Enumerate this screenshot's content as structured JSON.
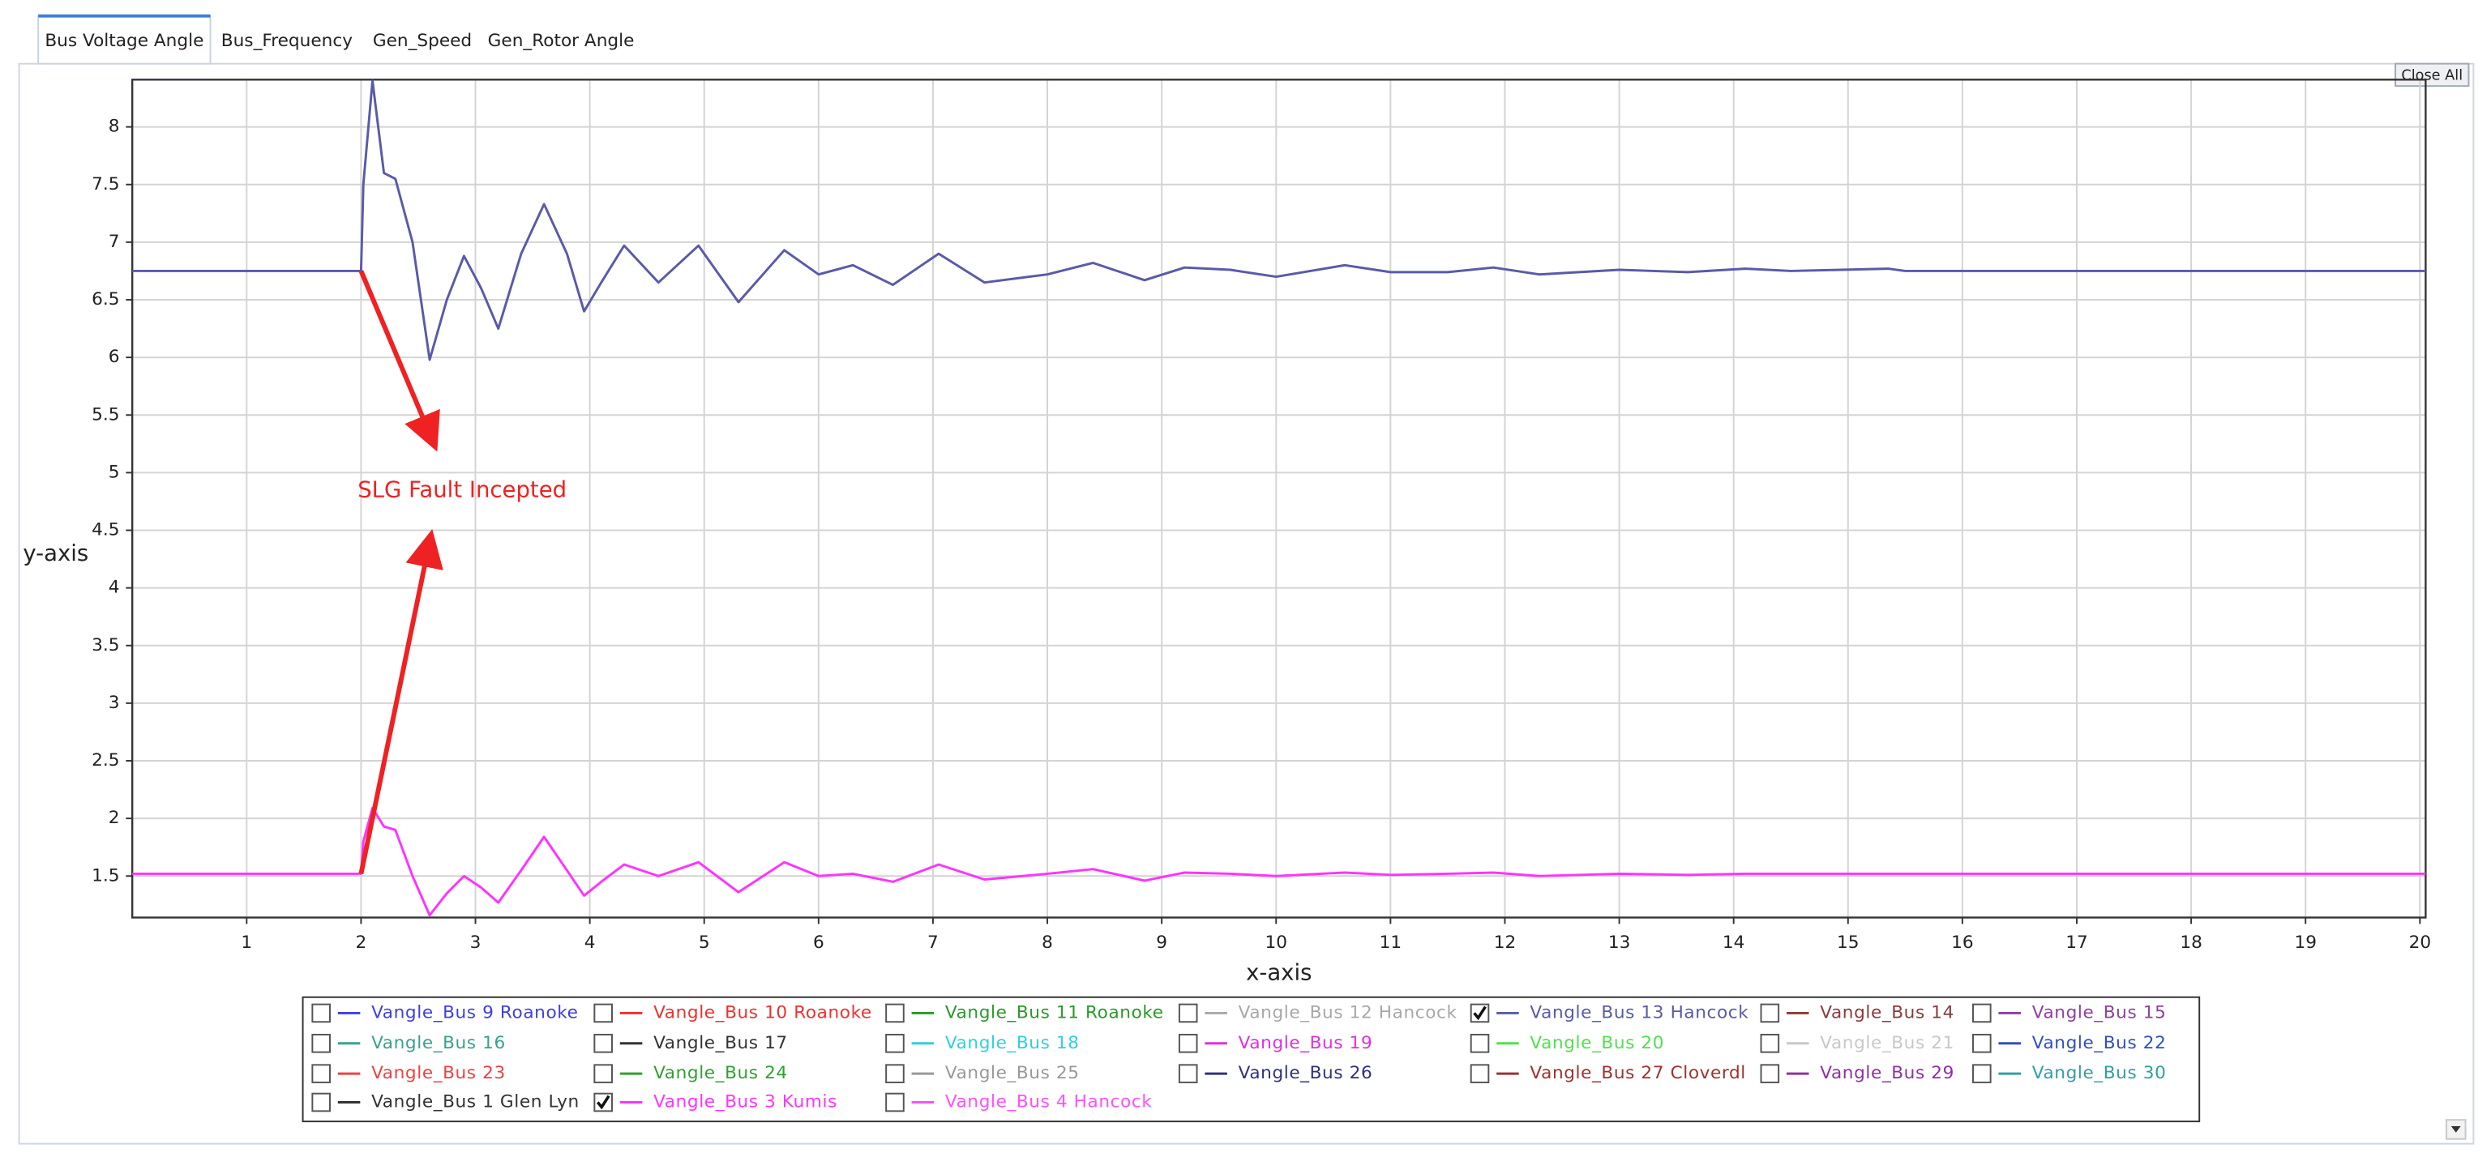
{
  "tabs": [
    "Bus Voltage Angle",
    "Bus_Frequency",
    "Gen_Speed",
    "Gen_Rotor Angle"
  ],
  "close_button": "Close All",
  "chart_data": {
    "type": "line",
    "xlabel": "x-axis",
    "ylabel": "y-axis",
    "annotation": "SLG Fault Incepted",
    "xlim": [
      0,
      20.05
    ],
    "ylim": [
      1.14,
      8.41
    ],
    "xticks": [
      1,
      2,
      3,
      4,
      5,
      6,
      7,
      8,
      9,
      10,
      11,
      12,
      13,
      14,
      15,
      16,
      17,
      18,
      19,
      20
    ],
    "yticks": [
      1.5,
      2,
      2.5,
      3,
      3.5,
      4,
      4.5,
      5,
      5.5,
      6,
      6.5,
      7,
      7.5,
      8
    ],
    "grid": true,
    "x": [
      0,
      2,
      2.02,
      2.1,
      2.2,
      2.3,
      2.45,
      2.6,
      2.75,
      2.9,
      3.05,
      3.2,
      3.4,
      3.6,
      3.8,
      3.95,
      4.1,
      4.3,
      4.6,
      4.95,
      5.3,
      5.7,
      6.0,
      6.3,
      6.65,
      7.05,
      7.45,
      8.0,
      8.4,
      8.85,
      9.2,
      9.6,
      10.0,
      10.6,
      11.0,
      11.5,
      11.9,
      12.3,
      13.0,
      13.6,
      14.1,
      14.5,
      15.35,
      15.5,
      20.05
    ],
    "series": [
      {
        "name": "Vangle_Bus 9 Roanoke",
        "color": "#4040e0",
        "checked": false
      },
      {
        "name": "Vangle_Bus 10 Roanoke",
        "color": "#f03030",
        "checked": false
      },
      {
        "name": "Vangle_Bus 11 Roanoke",
        "color": "#2a9a2a",
        "checked": false
      },
      {
        "name": "Vangle_Bus 12 Hancock",
        "color": "#a8a8a8",
        "checked": false
      },
      {
        "name": "Vangle_Bus 13 Hancock",
        "color": "#5a5aaa",
        "checked": true,
        "values": [
          6.75,
          6.75,
          7.5,
          8.4,
          7.6,
          7.55,
          7.0,
          5.98,
          6.5,
          6.88,
          6.6,
          6.25,
          6.9,
          7.33,
          6.9,
          6.4,
          6.65,
          6.97,
          6.65,
          6.97,
          6.48,
          6.93,
          6.72,
          6.8,
          6.63,
          6.9,
          6.65,
          6.72,
          6.82,
          6.67,
          6.78,
          6.76,
          6.7,
          6.8,
          6.74,
          6.74,
          6.78,
          6.72,
          6.76,
          6.74,
          6.77,
          6.75,
          6.77,
          6.75,
          6.75
        ]
      },
      {
        "name": "Vangle_Bus 14",
        "color": "#8b3a3a",
        "checked": false
      },
      {
        "name": "Vangle_Bus 15",
        "color": "#9040a0",
        "checked": false
      },
      {
        "name": "Vangle_Bus 16",
        "color": "#3aa090",
        "checked": false
      },
      {
        "name": "Vangle_Bus 17",
        "color": "#333333",
        "checked": false
      },
      {
        "name": "Vangle_Bus 18",
        "color": "#30d0e0",
        "checked": false
      },
      {
        "name": "Vangle_Bus 19",
        "color": "#e030e0",
        "checked": false
      },
      {
        "name": "Vangle_Bus 20",
        "color": "#50e050",
        "checked": false
      },
      {
        "name": "Vangle_Bus 21",
        "color": "#c8c8c8",
        "checked": false
      },
      {
        "name": "Vangle_Bus 22",
        "color": "#3050c0",
        "checked": false
      },
      {
        "name": "Vangle_Bus 23",
        "color": "#f04040",
        "checked": false
      },
      {
        "name": "Vangle_Bus 24",
        "color": "#30a030",
        "checked": false
      },
      {
        "name": "Vangle_Bus 25",
        "color": "#999999",
        "checked": false
      },
      {
        "name": "Vangle_Bus 26",
        "color": "#303080",
        "checked": false
      },
      {
        "name": "Vangle_Bus 27 Cloverdl",
        "color": "#a03030",
        "checked": false
      },
      {
        "name": "Vangle_Bus 29",
        "color": "#9030a0",
        "checked": false
      },
      {
        "name": "Vangle_Bus 30",
        "color": "#30a0a0",
        "checked": false
      },
      {
        "name": "Vangle_Bus 1 Glen Lyn",
        "color": "#333333",
        "checked": false
      },
      {
        "name": "Vangle_Bus 3 Kumis",
        "color": "#ff33ff",
        "checked": true,
        "values": [
          1.52,
          1.52,
          1.8,
          2.09,
          1.93,
          1.9,
          1.5,
          1.16,
          1.35,
          1.5,
          1.4,
          1.27,
          1.55,
          1.84,
          1.55,
          1.33,
          1.45,
          1.6,
          1.5,
          1.62,
          1.36,
          1.62,
          1.5,
          1.52,
          1.45,
          1.6,
          1.47,
          1.52,
          1.56,
          1.46,
          1.53,
          1.52,
          1.5,
          1.53,
          1.51,
          1.52,
          1.53,
          1.5,
          1.52,
          1.51,
          1.52,
          1.52,
          1.52,
          1.52,
          1.52
        ]
      },
      {
        "name": "Vangle_Bus 4 Hancock",
        "color": "#ff50ff",
        "checked": false
      }
    ]
  }
}
